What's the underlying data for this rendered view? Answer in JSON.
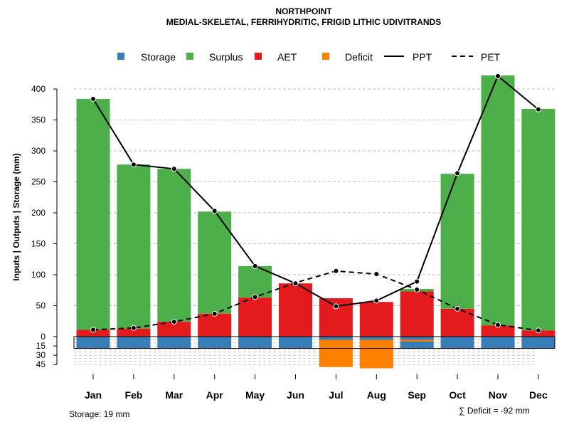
{
  "chart_data": {
    "type": "bar",
    "title": "NORTHPOINT",
    "subtitle": "MEDIAL-SKELETAL, FERRIHYDRITIC, FRIGID LITHIC UDIVITRANDS",
    "ylabel": "Inputs | Outputs | Storage    (mm)",
    "categories": [
      "Jan",
      "Feb",
      "Mar",
      "Apr",
      "May",
      "Jun",
      "Jul",
      "Aug",
      "Sep",
      "Oct",
      "Nov",
      "Dec"
    ],
    "yticks_upper": [
      "0",
      "50",
      "100",
      "150",
      "200",
      "250",
      "300",
      "350",
      "400"
    ],
    "yticks_lower": [
      "15",
      "30",
      "45"
    ],
    "ylim": [
      -52,
      420
    ],
    "legend": [
      "Storage",
      "Surplus",
      "AET",
      "Deficit",
      "PPT",
      "PET"
    ],
    "colors": {
      "storage": "#377eb8",
      "surplus": "#4daf4a",
      "aet": "#e41a1c",
      "deficit": "#ff7f00"
    },
    "series": [
      {
        "name": "Storage",
        "values": [
          19,
          19,
          19,
          19,
          19,
          19,
          19,
          19,
          19,
          19,
          19,
          19
        ]
      },
      {
        "name": "Surplus",
        "values": [
          373,
          265,
          247,
          165,
          51,
          0,
          0,
          0,
          4,
          218,
          404,
          358
        ]
      },
      {
        "name": "AET",
        "values": [
          11,
          13,
          24,
          37,
          63,
          86,
          62,
          56,
          73,
          45,
          18,
          10
        ]
      },
      {
        "name": "Deficit",
        "values": [
          0,
          0,
          0,
          0,
          0,
          0,
          44,
          46,
          3,
          0,
          0,
          0
        ]
      },
      {
        "name": "PPT",
        "values": [
          384,
          278,
          271,
          203,
          114,
          86,
          49,
          58,
          89,
          264,
          421,
          367
        ]
      },
      {
        "name": "PET",
        "values": [
          11,
          14,
          24,
          37,
          64,
          87,
          106,
          101,
          76,
          45,
          19,
          10
        ]
      }
    ]
  },
  "footer": {
    "storage_label": "Storage: 19 mm",
    "deficit_label": "∑ Deficit = -92 mm"
  }
}
